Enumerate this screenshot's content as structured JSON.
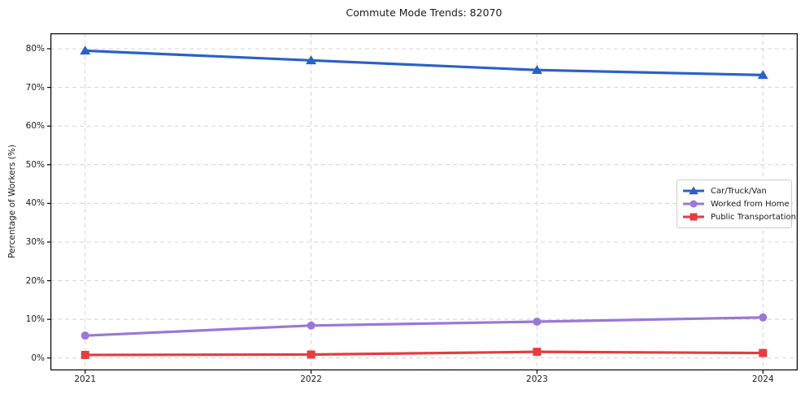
{
  "chart_data": {
    "type": "line",
    "title": "Commute Mode Trends: 82070",
    "xlabel": "",
    "ylabel": "Percentage of Workers (%)",
    "categories": [
      "2021",
      "2022",
      "2023",
      "2024"
    ],
    "series": [
      {
        "name": "Car/Truck/Van",
        "values": [
          79.5,
          77.0,
          74.5,
          73.2
        ],
        "color": "#2a61c8",
        "marker": "triangle"
      },
      {
        "name": "Worked from Home",
        "values": [
          5.8,
          8.4,
          9.4,
          10.5
        ],
        "color": "#9a77d9",
        "marker": "circle"
      },
      {
        "name": "Public Transportation",
        "values": [
          0.8,
          0.9,
          1.6,
          1.3
        ],
        "color": "#e63b3f",
        "marker": "square"
      }
    ],
    "yticks": [
      0,
      10,
      20,
      30,
      40,
      50,
      60,
      70,
      80
    ],
    "ytick_labels": [
      "0%",
      "10%",
      "20%",
      "30%",
      "40%",
      "50%",
      "60%",
      "70%",
      "80%"
    ],
    "ylim": [
      -3.2,
      84.0
    ],
    "x_margin_frac": 0.0465,
    "grid": true,
    "grid_style": "dashed",
    "legend_position": "center-right",
    "colors": {
      "grid": "#d4d4d4",
      "spine": "#000000",
      "text": "#1a1a1a",
      "legend_border": "#cccccc"
    }
  }
}
